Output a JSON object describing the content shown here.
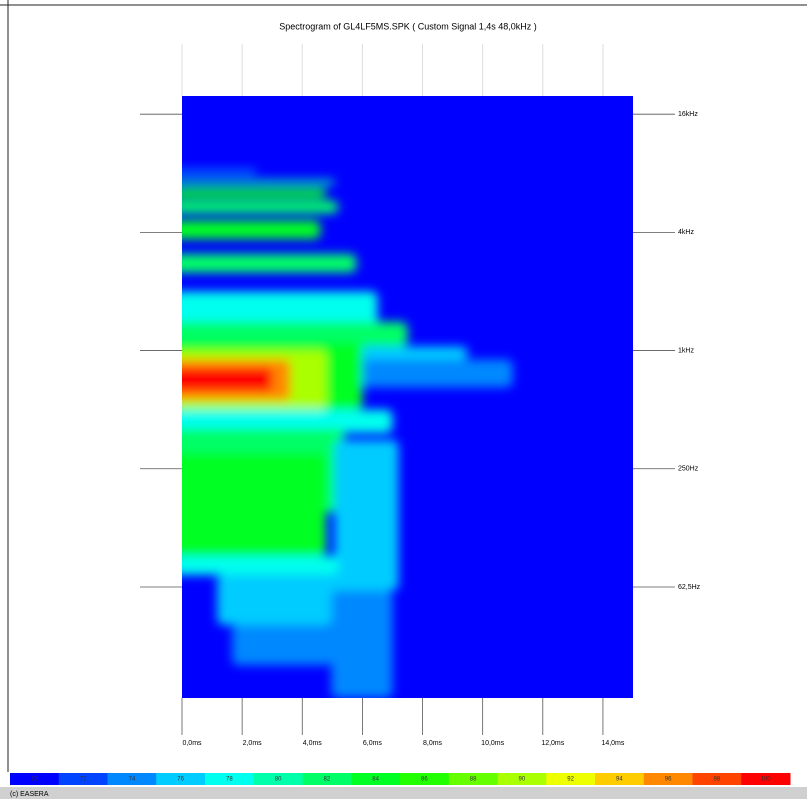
{
  "chart_data": {
    "type": "spectrogram",
    "title": "Spectrogram of GL4LF5MS.SPK ( Custom Signal 1,4s 48,0kHz )",
    "xlim": [
      0,
      15
    ],
    "xticks": [
      {
        "value": 0,
        "label": "0,0ms"
      },
      {
        "value": 2,
        "label": "2,0ms"
      },
      {
        "value": 4,
        "label": "4,0ms"
      },
      {
        "value": 6,
        "label": "6,0ms"
      },
      {
        "value": 8,
        "label": "8,0ms"
      },
      {
        "value": 10,
        "label": "10,0ms"
      },
      {
        "value": 12,
        "label": "12,0ms"
      },
      {
        "value": 14,
        "label": "14,0ms"
      }
    ],
    "ylim": [
      17,
      19800
    ],
    "log_y": true,
    "yticks": [
      {
        "value": 16000,
        "label": "16kHz"
      },
      {
        "value": 4000,
        "label": "4kHz"
      },
      {
        "value": 1000,
        "label": "1kHz"
      },
      {
        "value": 250,
        "label": "250Hz"
      },
      {
        "value": 62.5,
        "label": "62,5Hz"
      }
    ],
    "colorbar_ticks": [
      70,
      72,
      74,
      76,
      78,
      80,
      82,
      84,
      86,
      88,
      90,
      92,
      94,
      96,
      98,
      100
    ],
    "colorscale": [
      "#0000ff",
      "#00ffff",
      "#00ff00",
      "#ffff00",
      "#ff0000"
    ],
    "cells": [
      [
        0,
        2.5,
        8000,
        8300,
        76
      ],
      [
        0,
        5.1,
        7000,
        7400,
        80
      ],
      [
        0,
        4.8,
        6000,
        6700,
        84
      ],
      [
        0,
        5.2,
        5000,
        5800,
        82
      ],
      [
        0,
        4.6,
        3700,
        4600,
        84
      ],
      [
        0,
        5.8,
        2500,
        3100,
        82
      ],
      [
        0,
        6.5,
        1300,
        2000,
        78
      ],
      [
        0,
        7.5,
        1050,
        1400,
        82
      ],
      [
        0,
        9.5,
        900,
        1050,
        76
      ],
      [
        0,
        11,
        650,
        900,
        74
      ],
      [
        0,
        6,
        500,
        1100,
        84
      ],
      [
        0,
        4.8,
        500,
        1000,
        90
      ],
      [
        0,
        3.6,
        560,
        900,
        96
      ],
      [
        0,
        3,
        620,
        820,
        100
      ],
      [
        0,
        7,
        380,
        500,
        78
      ],
      [
        0,
        5.4,
        150,
        400,
        82
      ],
      [
        0,
        4.8,
        90,
        300,
        84
      ],
      [
        5.4,
        7.2,
        60,
        350,
        76
      ],
      [
        0,
        5.2,
        72,
        90,
        78
      ],
      [
        1.5,
        5.2,
        40,
        72,
        76
      ],
      [
        2,
        5,
        25,
        40,
        74
      ],
      [
        5.3,
        7,
        17,
        60,
        74
      ]
    ],
    "footer": "(c) EASERA"
  }
}
